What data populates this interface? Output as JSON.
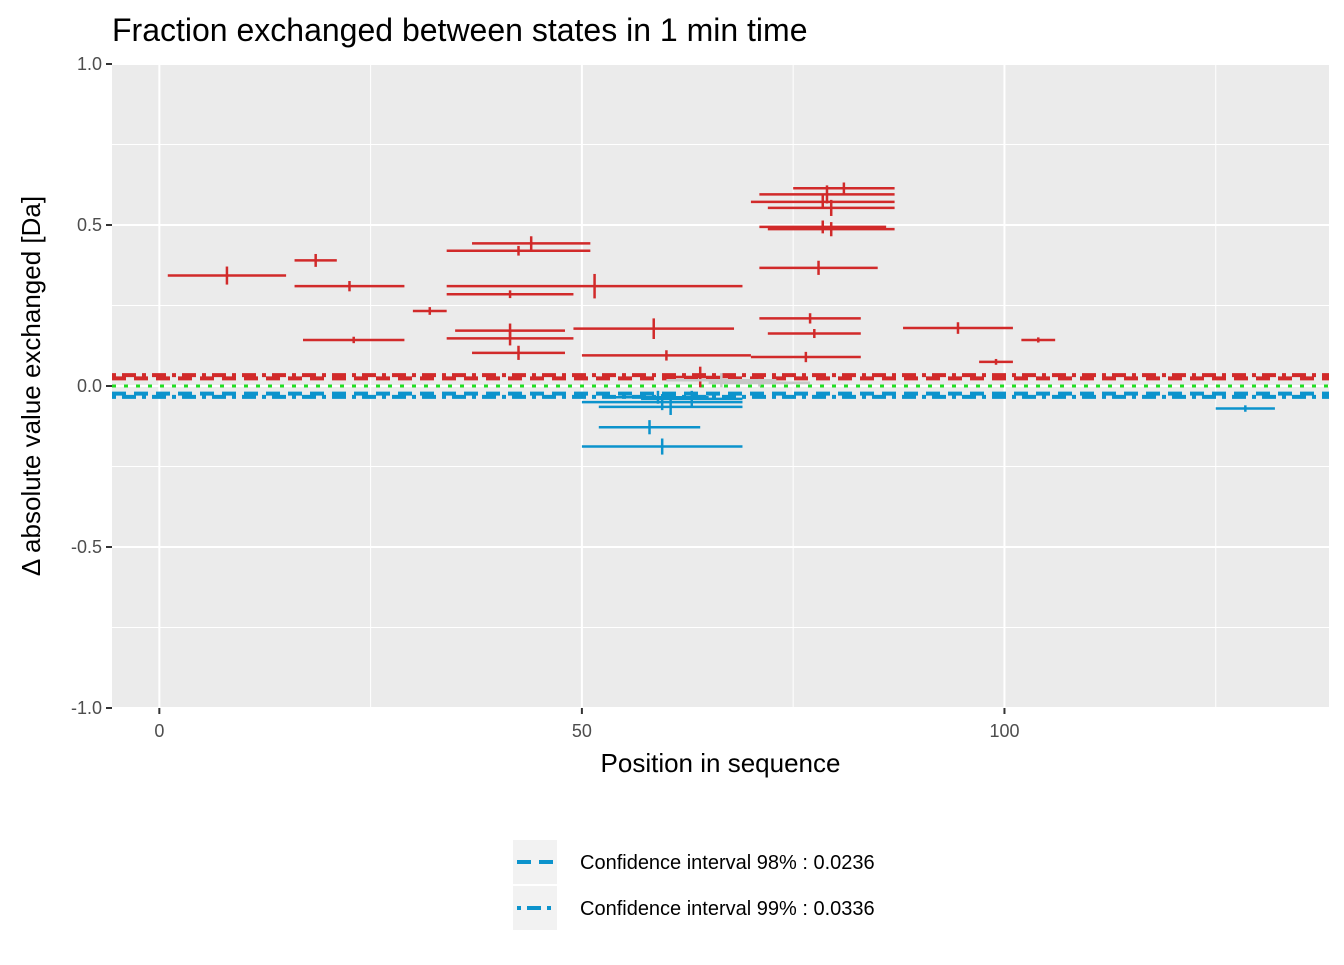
{
  "chart_data": {
    "type": "scatter",
    "title": "Fraction exchanged between states in 1 min time",
    "xlabel": "Position in sequence",
    "ylabel": "Δ absolute value exchanged [Da]",
    "xlim": [
      -5.6,
      138.4
    ],
    "ylim": [
      -1.0,
      1.0
    ],
    "xticks": [
      0,
      50,
      100
    ],
    "xtick_labels": [
      "0",
      "50",
      "100"
    ],
    "yticks": [
      -1.0,
      -0.5,
      0.0,
      0.5,
      1.0
    ],
    "ytick_labels": [
      "-1.0",
      "-0.5",
      "0.0",
      "0.5",
      "1.0"
    ],
    "grid": true,
    "legend_position": "bottom",
    "colors": {
      "increase": "#d12a2a",
      "decrease": "#0c93cc",
      "insignificant": "#c8c8c8",
      "zero": "#22dd22",
      "panel": "#ebebeb",
      "grid": "#ffffff"
    },
    "confidence_lines": [
      {
        "y": 0.0236,
        "color": "#d12a2a",
        "dash": "dashed"
      },
      {
        "y": 0.0336,
        "color": "#d12a2a",
        "dash": "dotdash"
      },
      {
        "y": -0.0236,
        "color": "#0c93cc",
        "dash": "dashed"
      },
      {
        "y": -0.0336,
        "color": "#0c93cc",
        "dash": "dotdash"
      },
      {
        "y": 0.0,
        "color": "#22dd22",
        "dash": "dotted"
      }
    ],
    "segments": [
      {
        "start": 1,
        "end": 15,
        "value": 0.343,
        "err": 0.028,
        "group": "increase"
      },
      {
        "start": 16,
        "end": 21,
        "value": 0.39,
        "err": 0.02,
        "group": "increase"
      },
      {
        "start": 16,
        "end": 29,
        "value": 0.31,
        "err": 0.016,
        "group": "increase"
      },
      {
        "start": 17,
        "end": 29,
        "value": 0.143,
        "err": 0.01,
        "group": "increase"
      },
      {
        "start": 30,
        "end": 34,
        "value": 0.233,
        "err": 0.012,
        "group": "increase"
      },
      {
        "start": 34,
        "end": 51,
        "value": 0.42,
        "err": 0.015,
        "group": "increase"
      },
      {
        "start": 37,
        "end": 51,
        "value": 0.443,
        "err": 0.022,
        "group": "increase"
      },
      {
        "start": 34,
        "end": 49,
        "value": 0.285,
        "err": 0.012,
        "group": "increase"
      },
      {
        "start": 34,
        "end": 69,
        "value": 0.31,
        "err": 0.038,
        "group": "increase"
      },
      {
        "start": 35,
        "end": 48,
        "value": 0.172,
        "err": 0.022,
        "group": "increase"
      },
      {
        "start": 34,
        "end": 49,
        "value": 0.148,
        "err": 0.022,
        "group": "increase"
      },
      {
        "start": 37,
        "end": 48,
        "value": 0.103,
        "err": 0.022,
        "group": "increase"
      },
      {
        "start": 49,
        "end": 68,
        "value": 0.178,
        "err": 0.032,
        "group": "increase"
      },
      {
        "start": 50,
        "end": 70,
        "value": 0.095,
        "err": 0.016,
        "group": "increase"
      },
      {
        "start": 60,
        "end": 68,
        "value": 0.028,
        "err": 0.032,
        "group": "increase"
      },
      {
        "start": 70,
        "end": 87,
        "value": 0.572,
        "err": 0.022,
        "group": "increase"
      },
      {
        "start": 71,
        "end": 87,
        "value": 0.595,
        "err": 0.028,
        "group": "increase"
      },
      {
        "start": 75,
        "end": 87,
        "value": 0.614,
        "err": 0.018,
        "group": "increase"
      },
      {
        "start": 72,
        "end": 87,
        "value": 0.553,
        "err": 0.025,
        "group": "increase"
      },
      {
        "start": 71,
        "end": 86,
        "value": 0.494,
        "err": 0.02,
        "group": "increase"
      },
      {
        "start": 72,
        "end": 87,
        "value": 0.487,
        "err": 0.022,
        "group": "increase"
      },
      {
        "start": 71,
        "end": 85,
        "value": 0.367,
        "err": 0.022,
        "group": "increase"
      },
      {
        "start": 71,
        "end": 83,
        "value": 0.21,
        "err": 0.016,
        "group": "increase"
      },
      {
        "start": 72,
        "end": 83,
        "value": 0.163,
        "err": 0.014,
        "group": "increase"
      },
      {
        "start": 70,
        "end": 83,
        "value": 0.09,
        "err": 0.016,
        "group": "increase"
      },
      {
        "start": 88,
        "end": 101,
        "value": 0.18,
        "err": 0.018,
        "group": "increase"
      },
      {
        "start": 97,
        "end": 101,
        "value": 0.075,
        "err": 0.009,
        "group": "increase"
      },
      {
        "start": 102,
        "end": 106,
        "value": 0.143,
        "err": 0.008,
        "group": "increase"
      },
      {
        "start": 60,
        "end": 73,
        "value": 0.018,
        "err": 0.022,
        "group": "insignificant"
      },
      {
        "start": 65,
        "end": 77,
        "value": 0.01,
        "err": 0.012,
        "group": "insignificant"
      },
      {
        "start": 50,
        "end": 69,
        "value": -0.05,
        "err": 0.025,
        "group": "decrease"
      },
      {
        "start": 52,
        "end": 69,
        "value": -0.065,
        "err": 0.025,
        "group": "decrease"
      },
      {
        "start": 53,
        "end": 65,
        "value": -0.035,
        "err": 0.02,
        "group": "decrease"
      },
      {
        "start": 57,
        "end": 69,
        "value": -0.04,
        "err": 0.025,
        "group": "decrease"
      },
      {
        "start": 52,
        "end": 64,
        "value": -0.128,
        "err": 0.022,
        "group": "decrease"
      },
      {
        "start": 50,
        "end": 69,
        "value": -0.188,
        "err": 0.025,
        "group": "decrease"
      },
      {
        "start": 125,
        "end": 132,
        "value": -0.07,
        "err": 0.01,
        "group": "decrease"
      }
    ],
    "legend": [
      {
        "label": "Confidence interval 98% : 0.0236",
        "dash": "dashed"
      },
      {
        "label": "Confidence interval 99% : 0.0336",
        "dash": "dotdash"
      }
    ]
  }
}
